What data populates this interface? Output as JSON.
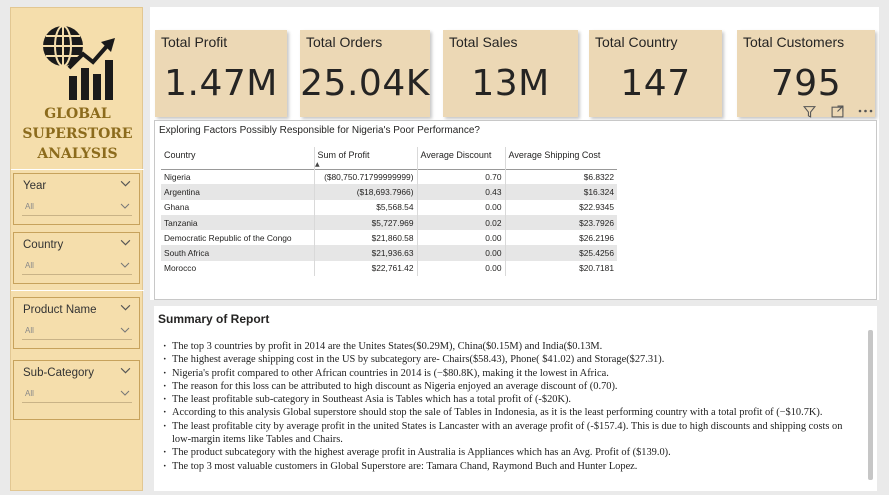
{
  "brand": {
    "line1": "GLOBAL",
    "line2": "SUPERSTORE",
    "line3": "ANALYSIS",
    "logo_icon": "globe-growth-chart-icon"
  },
  "colors": {
    "sidebar_bg": "#f5deac",
    "brand_text": "#8c6b1c",
    "kpi_bg": "#ecd8b5"
  },
  "slicers": [
    {
      "title": "Year",
      "value": "All"
    },
    {
      "title": "Country",
      "value": "All"
    },
    {
      "title": "Product Name",
      "value": "All"
    },
    {
      "title": "Sub-Category",
      "value": "All"
    }
  ],
  "kpis": [
    {
      "title": "Total Profit",
      "value": "1.47M"
    },
    {
      "title": "Total Orders",
      "value": "25.04K"
    },
    {
      "title": "Total Sales",
      "value": "13M"
    },
    {
      "title": "Total Country",
      "value": "147"
    },
    {
      "title": "Total Customers",
      "value": "795"
    }
  ],
  "toolbar": {
    "filter_icon": "filter-icon",
    "focus_icon": "focus-mode-icon",
    "more_icon": "more-options-icon"
  },
  "table": {
    "title": "Exploring Factors Possibly Responsible for Nigeria's Poor Performance?",
    "columns": [
      "Country",
      "Sum of Profit",
      "Average Discount",
      "Average Shipping Cost"
    ],
    "rows": [
      [
        "Nigeria",
        "($80,750.71799999999)",
        "0.70",
        "$6.8322"
      ],
      [
        "Argentina",
        "($18,693.7966)",
        "0.43",
        "$16.324"
      ],
      [
        "Ghana",
        "$5,568.54",
        "0.00",
        "$22.9345"
      ],
      [
        "Tanzania",
        "$5,727.969",
        "0.02",
        "$23.7926"
      ],
      [
        "Democratic Republic of the Congo",
        "$21,860.58",
        "0.00",
        "$26.2196"
      ],
      [
        "South Africa",
        "$21,936.63",
        "0.00",
        "$25.4256"
      ],
      [
        "Morocco",
        "$22,761.42",
        "0.00",
        "$20.7181"
      ]
    ]
  },
  "summary": {
    "title": "Summary of Report",
    "items": [
      "The top 3 countries by profit in 2014 are the Unites States($0.29M), China($0.15M) and India($0.13M.",
      "The highest  average shipping cost in the US by subcategory are- Chairs($58.43), Phone( $41.02) and Storage($27.31).",
      "Nigeria's profit compared to other African countries in 2014 is (−$80.8K), making it the lowest in Africa.",
      "The reason for this loss can be attributed to high discount as Nigeria  enjoyed an average discount of (0.70).",
      "The least profitable sub-category in Southeast Asia is Tables which has a total profit of (-$20K).",
      "According to this analysis Global superstore should stop the sale of Tables in Indonesia, as it is the least performing country with a total profit of (−$10.7K).",
      "The least profitable city by average profit in the united States is Lancaster with an average profit of (-$157.4). This is due to high discounts and shipping costs on low-margin items like Tables and Chairs.",
      "The product subcategory with the highest average profit in Australia is Appliances which has an Avg. Profit of ($139.0).",
      "The top 3 most valuable customers in Global Superstore are: Tamara Chand, Raymond Buch and Hunter Lopez."
    ]
  }
}
